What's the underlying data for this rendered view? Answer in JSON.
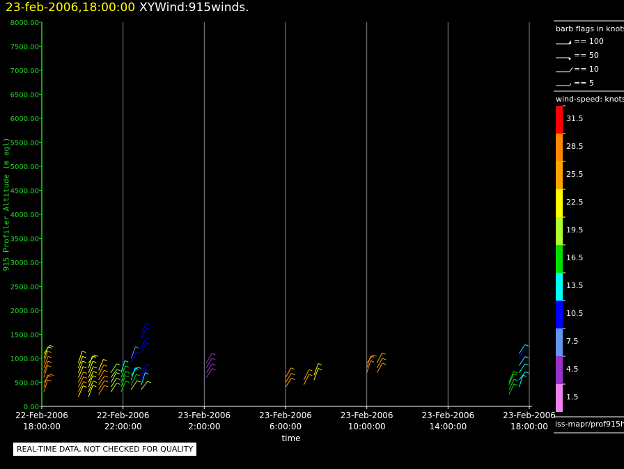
{
  "header": {
    "datetime": "23-feb-2006,18:00:00",
    "product": "XYWind:915winds."
  },
  "notice": "REAL-TIME DATA, NOT CHECKED FOR QUALITY",
  "footer": "iss-mapr/prof915h",
  "colors": {
    "axis": "#22d822",
    "grid": "#888888",
    "datetime": "#ffff00"
  },
  "legend": {
    "barb_title": "barb flags in knots",
    "barb_flags": [
      "== 100",
      "== 50",
      "== 10",
      "== 5"
    ],
    "speed_title": "wind-speed: knots",
    "speed_bins": [
      {
        "label": "31.5",
        "color": "#ff0000"
      },
      {
        "label": "28.5",
        "color": "#ff8800"
      },
      {
        "label": "25.5",
        "color": "#ffa500"
      },
      {
        "label": "22.5",
        "color": "#ffff00"
      },
      {
        "label": "19.5",
        "color": "#adff2f"
      },
      {
        "label": "16.5",
        "color": "#00e000"
      },
      {
        "label": "13.5",
        "color": "#00ffff"
      },
      {
        "label": "10.5",
        "color": "#0000ff"
      },
      {
        "label": "7.5",
        "color": "#6495ed"
      },
      {
        "label": "4.5",
        "color": "#9932cc"
      },
      {
        "label": "1.5",
        "color": "#ee82ee"
      }
    ]
  },
  "chart_data": {
    "type": "scatter",
    "ylabel": "915 Profiler Altitude (m agl)",
    "xlabel": "time",
    "ylim": [
      0,
      8000
    ],
    "yticks": [
      "0.00",
      "500.00",
      "1000.00",
      "1500.00",
      "2000.00",
      "2500.00",
      "3000.00",
      "3500.00",
      "4000.00",
      "4500.00",
      "5000.00",
      "5500.00",
      "6000.00",
      "6500.00",
      "7000.00",
      "7500.00",
      "8000.00"
    ],
    "xlim_hours": [
      0,
      24
    ],
    "xticks": [
      {
        "hour": 0,
        "date": "22-Feb-2006",
        "time": "18:00:00"
      },
      {
        "hour": 4,
        "date": "22-Feb-2006",
        "time": "22:00:00"
      },
      {
        "hour": 8,
        "date": "23-Feb-2006",
        "time": "2:00:00"
      },
      {
        "hour": 12,
        "date": "23-Feb-2006",
        "time": "6:00:00"
      },
      {
        "hour": 16,
        "date": "23-Feb-2006",
        "time": "10:00:00"
      },
      {
        "hour": 20,
        "date": "23-Feb-2006",
        "time": "14:00:00"
      },
      {
        "hour": 24,
        "date": "23-Feb-2006",
        "time": "18:00:00"
      }
    ],
    "grid": true,
    "series": [
      {
        "hour": 0.1,
        "profile": [
          [
            300,
            28
          ],
          [
            400,
            28
          ],
          [
            500,
            27
          ],
          [
            600,
            28
          ],
          [
            700,
            29
          ],
          [
            800,
            29
          ],
          [
            900,
            28
          ],
          [
            1000,
            22
          ],
          [
            1100,
            20
          ]
        ]
      },
      {
        "hour": 1.8,
        "profile": [
          [
            200,
            23
          ],
          [
            300,
            24
          ],
          [
            400,
            24
          ],
          [
            500,
            24
          ],
          [
            600,
            23
          ],
          [
            700,
            22
          ],
          [
            800,
            22
          ],
          [
            900,
            21
          ]
        ]
      },
      {
        "hour": 2.3,
        "profile": [
          [
            200,
            22
          ],
          [
            300,
            23
          ],
          [
            400,
            22
          ],
          [
            500,
            23
          ],
          [
            600,
            23
          ],
          [
            700,
            22
          ],
          [
            800,
            21
          ],
          [
            900,
            20
          ]
        ]
      },
      {
        "hour": 2.8,
        "profile": [
          [
            250,
            26
          ],
          [
            350,
            26
          ],
          [
            450,
            26
          ],
          [
            550,
            25
          ],
          [
            650,
            24
          ],
          [
            750,
            23
          ]
        ]
      },
      {
        "hour": 3.4,
        "profile": [
          [
            300,
            19
          ],
          [
            400,
            19
          ],
          [
            500,
            18
          ],
          [
            600,
            20
          ],
          [
            700,
            19
          ]
        ]
      },
      {
        "hour": 3.9,
        "profile": [
          [
            300,
            16
          ],
          [
            400,
            15
          ],
          [
            500,
            16
          ],
          [
            600,
            15
          ],
          [
            700,
            14
          ]
        ]
      },
      {
        "hour": 4.4,
        "profile": [
          [
            350,
            19
          ],
          [
            450,
            17
          ],
          [
            550,
            14
          ],
          [
            650,
            13
          ],
          [
            900,
            9
          ],
          [
            1000,
            8
          ]
        ]
      },
      {
        "hour": 4.9,
        "profile": [
          [
            350,
            20
          ],
          [
            450,
            14
          ],
          [
            550,
            9
          ],
          [
            650,
            9
          ],
          [
            1100,
            9
          ],
          [
            1200,
            9
          ],
          [
            1400,
            9
          ],
          [
            1500,
            9
          ]
        ]
      },
      {
        "hour": 8.1,
        "profile": [
          [
            600,
            5
          ],
          [
            700,
            5
          ],
          [
            800,
            4
          ],
          [
            900,
            4
          ]
        ]
      },
      {
        "hour": 12.0,
        "profile": [
          [
            400,
            26
          ],
          [
            500,
            26
          ],
          [
            600,
            25
          ]
        ]
      },
      {
        "hour": 12.9,
        "profile": [
          [
            450,
            24
          ],
          [
            550,
            24
          ]
        ]
      },
      {
        "hour": 13.4,
        "profile": [
          [
            550,
            22
          ],
          [
            650,
            22
          ]
        ]
      },
      {
        "hour": 16.0,
        "profile": [
          [
            700,
            28
          ],
          [
            800,
            28
          ],
          [
            900,
            27
          ]
        ]
      },
      {
        "hour": 16.5,
        "profile": [
          [
            700,
            25
          ],
          [
            800,
            25
          ],
          [
            900,
            24
          ]
        ]
      },
      {
        "hour": 23.0,
        "profile": [
          [
            250,
            17
          ],
          [
            350,
            17
          ],
          [
            450,
            16
          ],
          [
            500,
            16
          ]
        ]
      },
      {
        "hour": 23.5,
        "profile": [
          [
            400,
            14
          ],
          [
            550,
            13
          ],
          [
            700,
            12
          ],
          [
            850,
            12
          ],
          [
            1000,
            11
          ],
          [
            1100,
            12
          ]
        ]
      }
    ]
  }
}
